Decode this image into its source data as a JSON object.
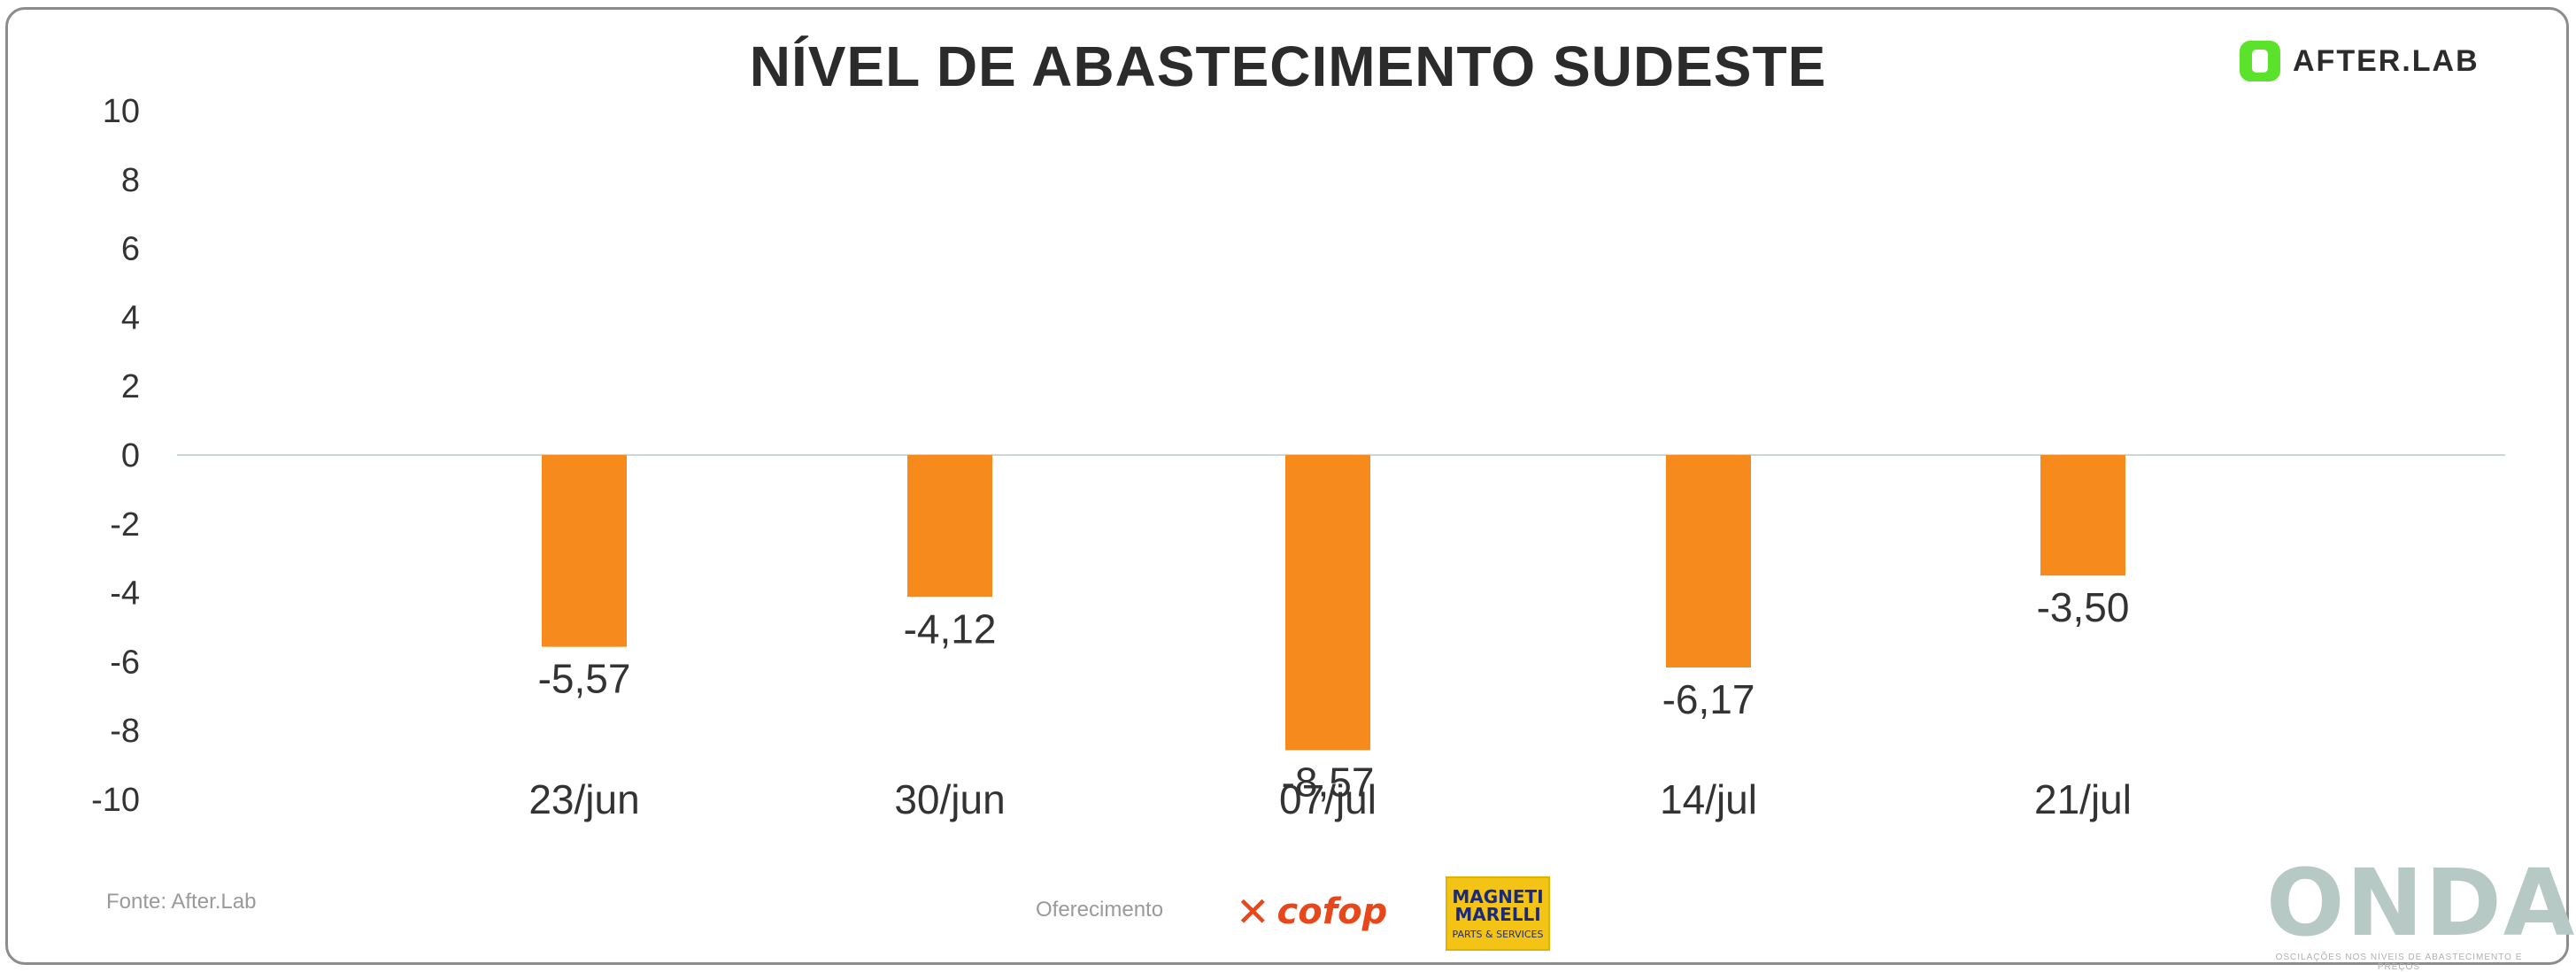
{
  "title": "NÍVEL DE ABASTECIMENTO SUDESTE",
  "brand": {
    "name": "AFTER.LAB",
    "color": "#5be22b"
  },
  "footer": {
    "source": "Fonte: After.Lab",
    "sponsor_label": "Oferecimento",
    "sponsor_1": "cofop",
    "sponsor_2_line1": "MAGNETI",
    "sponsor_2_line2": "MARELLI",
    "sponsor_2_line3": "PARTS & SERVICES",
    "onda": "ONDA",
    "onda_tagline": "OSCILAÇÕES NOS NÍVEIS DE ABASTECIMENTO E PREÇOS"
  },
  "chart_data": {
    "type": "bar",
    "title": "NÍVEL DE ABASTECIMENTO SUDESTE",
    "xlabel": "",
    "ylabel": "",
    "categories": [
      "23/jun",
      "30/jun",
      "07/jul",
      "14/jul",
      "21/jul"
    ],
    "values": [
      -5.57,
      -4.12,
      -8.57,
      -6.17,
      -3.5
    ],
    "value_labels": [
      "-5,57",
      "-4,12",
      "-8,57",
      "-6,17",
      "-3,50"
    ],
    "ylim": [
      -10,
      10
    ],
    "yticks": [
      10,
      8,
      6,
      4,
      2,
      0,
      -2,
      -4,
      -6,
      -8,
      -10
    ],
    "ytick_labels": [
      "10",
      "8",
      "6",
      "4",
      "2",
      "0",
      "-2",
      "-4",
      "-6",
      "-8",
      "-10"
    ],
    "grid": false,
    "bar_color": "#f78a1d",
    "zero_line_color": "#c8d8d8"
  }
}
